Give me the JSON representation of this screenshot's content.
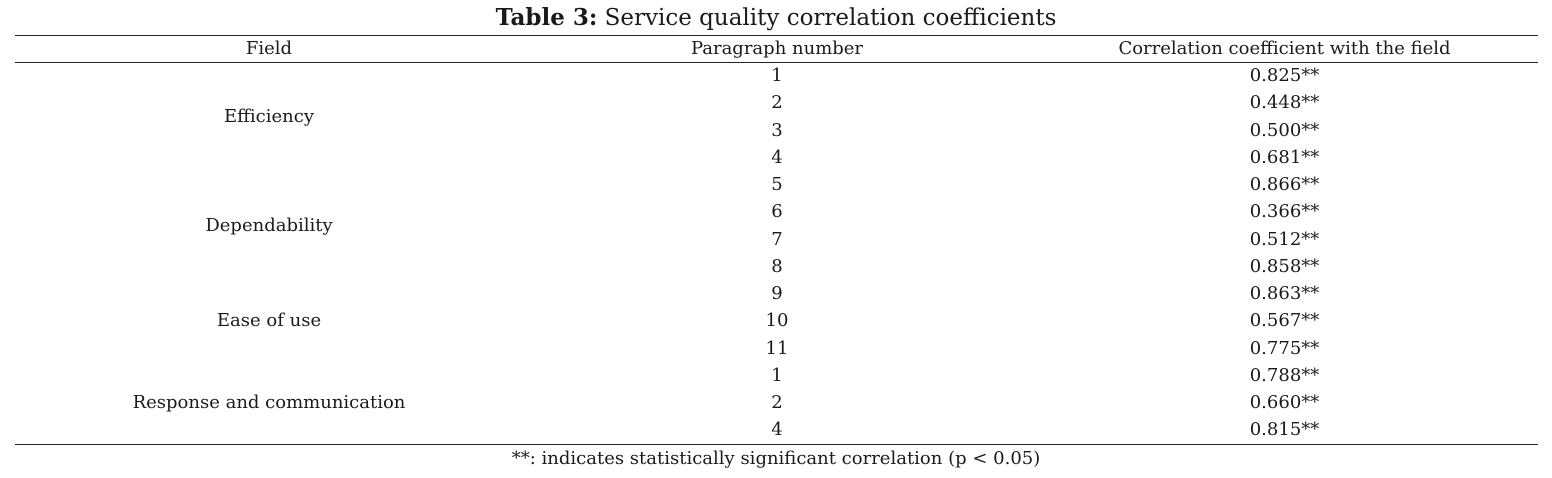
{
  "title": {
    "label": "Table 3:",
    "text": " Service quality correlation coefficients"
  },
  "table": {
    "headers": [
      "Field",
      "Paragraph number",
      "Correlation coefficient with the field"
    ],
    "groups": [
      {
        "field": "Efficiency",
        "rows": [
          {
            "paragraph": "1",
            "coefficient": "0.825**"
          },
          {
            "paragraph": "2",
            "coefficient": "0.448**"
          },
          {
            "paragraph": "3",
            "coefficient": "0.500**"
          },
          {
            "paragraph": "4",
            "coefficient": "0.681**"
          }
        ]
      },
      {
        "field": "Dependability",
        "rows": [
          {
            "paragraph": "5",
            "coefficient": "0.866**"
          },
          {
            "paragraph": "6",
            "coefficient": "0.366**"
          },
          {
            "paragraph": "7",
            "coefficient": "0.512**"
          },
          {
            "paragraph": "8",
            "coefficient": "0.858**"
          }
        ]
      },
      {
        "field": "Ease of use",
        "rows": [
          {
            "paragraph": "9",
            "coefficient": "0.863**"
          },
          {
            "paragraph": "10",
            "coefficient": "0.567**"
          },
          {
            "paragraph": "11",
            "coefficient": "0.775**"
          }
        ]
      },
      {
        "field": "Response and communication",
        "rows": [
          {
            "paragraph": "1",
            "coefficient": "0.788**"
          },
          {
            "paragraph": "2",
            "coefficient": "0.660**"
          },
          {
            "paragraph": "4",
            "coefficient": "0.815**"
          }
        ]
      }
    ]
  },
  "footnote": "**: indicates statistically significant correlation (p < 0.05)"
}
